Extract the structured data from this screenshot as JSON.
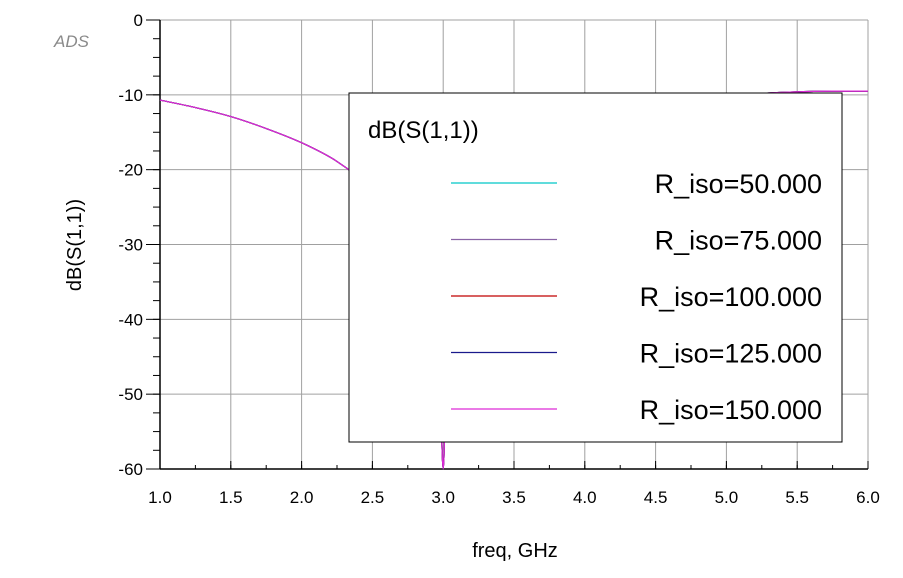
{
  "watermark": "ADS",
  "chart_data": {
    "type": "line",
    "xlabel": "freq, GHz",
    "ylabel": "dB(S(1,1))",
    "xlim": [
      1.0,
      6.0
    ],
    "ylim": [
      -60,
      0
    ],
    "x_ticks": [
      "1.0",
      "1.5",
      "2.0",
      "2.5",
      "3.0",
      "3.5",
      "4.0",
      "4.5",
      "5.0",
      "5.5",
      "6.0"
    ],
    "y_ticks": [
      "0",
      "-10",
      "-20",
      "-30",
      "-40",
      "-50",
      "-60"
    ],
    "grid": true,
    "legend": {
      "title": "dB(S(1,1))",
      "placement": "center-right"
    },
    "series": [
      {
        "name": "R_iso=50.000",
        "color": "#00c8c8",
        "x": [
          1.0,
          1.25,
          1.5,
          1.75,
          2.0,
          2.25,
          2.5,
          2.6,
          2.7,
          2.8,
          2.9,
          2.95,
          2.98,
          3.0,
          3.02,
          3.05,
          3.1,
          3.2,
          3.3,
          3.4,
          3.5,
          3.75,
          4.0,
          4.25,
          4.5,
          4.75,
          5.0,
          5.25,
          5.5,
          5.75,
          6.0
        ],
        "values": [
          -10.7,
          -11.7,
          -12.9,
          -14.5,
          -16.4,
          -18.9,
          -22.6,
          -24.6,
          -27.1,
          -30.7,
          -36.8,
          -42.6,
          -50.5,
          -60.0,
          -48.5,
          -38.2,
          -31.4,
          -25.4,
          -21.7,
          -19.1,
          -17.0,
          -14.3,
          -12.8,
          -11.7,
          -11.0,
          -10.5,
          -10.1,
          -9.8,
          -9.6,
          -9.5,
          -9.5
        ]
      },
      {
        "name": "R_iso=75.000",
        "color": "#8a64a6",
        "x": [
          1.0,
          1.25,
          1.5,
          1.75,
          2.0,
          2.25,
          2.5,
          2.6,
          2.7,
          2.8,
          2.9,
          2.95,
          2.98,
          3.0,
          3.02,
          3.05,
          3.1,
          3.2,
          3.3,
          3.4,
          3.5,
          3.75,
          4.0,
          4.25,
          4.5,
          4.75,
          5.0,
          5.25,
          5.5,
          5.75,
          6.0
        ],
        "values": [
          -10.7,
          -11.7,
          -12.9,
          -14.5,
          -16.4,
          -18.9,
          -22.6,
          -24.6,
          -27.1,
          -30.7,
          -36.8,
          -42.6,
          -50.5,
          -60.0,
          -48.5,
          -38.2,
          -31.4,
          -25.4,
          -21.7,
          -19.1,
          -17.0,
          -14.3,
          -12.8,
          -11.7,
          -11.0,
          -10.5,
          -10.1,
          -9.8,
          -9.6,
          -9.5,
          -9.5
        ]
      },
      {
        "name": "R_iso=100.000",
        "color": "#c00000",
        "x": [
          1.0,
          1.25,
          1.5,
          1.75,
          2.0,
          2.25,
          2.5,
          2.6,
          2.7,
          2.8,
          2.9,
          2.95,
          2.98,
          3.0,
          3.02,
          3.05,
          3.1,
          3.2,
          3.3,
          3.4,
          3.5,
          3.75,
          4.0,
          4.25,
          4.5,
          4.75,
          5.0,
          5.25,
          5.5,
          5.75,
          6.0
        ],
        "values": [
          -10.7,
          -11.7,
          -12.9,
          -14.5,
          -16.4,
          -18.9,
          -22.6,
          -24.6,
          -27.1,
          -30.7,
          -36.8,
          -42.6,
          -50.5,
          -60.0,
          -48.5,
          -38.2,
          -31.4,
          -25.4,
          -21.7,
          -19.1,
          -17.0,
          -14.3,
          -12.8,
          -11.7,
          -11.0,
          -10.5,
          -10.1,
          -9.8,
          -9.6,
          -9.5,
          -9.5
        ]
      },
      {
        "name": "R_iso=125.000",
        "color": "#1a1a8c",
        "x": [
          1.0,
          1.25,
          1.5,
          1.75,
          2.0,
          2.25,
          2.5,
          2.6,
          2.7,
          2.8,
          2.9,
          2.95,
          2.98,
          3.0,
          3.02,
          3.05,
          3.1,
          3.2,
          3.3,
          3.4,
          3.5,
          3.75,
          4.0,
          4.25,
          4.5,
          4.75,
          5.0,
          5.25,
          5.5,
          5.75,
          6.0
        ],
        "values": [
          -10.7,
          -11.7,
          -12.9,
          -14.5,
          -16.4,
          -18.9,
          -22.6,
          -24.6,
          -27.1,
          -30.7,
          -36.8,
          -42.6,
          -50.5,
          -60.0,
          -48.5,
          -38.2,
          -31.4,
          -25.4,
          -21.7,
          -19.1,
          -17.0,
          -14.3,
          -12.8,
          -11.7,
          -11.0,
          -10.5,
          -10.1,
          -9.8,
          -9.6,
          -9.5,
          -9.5
        ]
      },
      {
        "name": "R_iso=150.000",
        "color": "#dd2ad6",
        "x": [
          1.0,
          1.25,
          1.5,
          1.75,
          2.0,
          2.25,
          2.5,
          2.6,
          2.7,
          2.8,
          2.9,
          2.95,
          2.98,
          3.0,
          3.02,
          3.05,
          3.1,
          3.2,
          3.3,
          3.4,
          3.5,
          3.75,
          4.0,
          4.25,
          4.5,
          4.75,
          5.0,
          5.25,
          5.5,
          5.75,
          6.0
        ],
        "values": [
          -10.7,
          -11.7,
          -12.9,
          -14.5,
          -16.4,
          -18.9,
          -22.6,
          -24.6,
          -27.1,
          -30.7,
          -36.8,
          -42.6,
          -50.5,
          -60.0,
          -48.5,
          -38.2,
          -31.4,
          -25.4,
          -21.7,
          -19.1,
          -17.0,
          -14.3,
          -12.8,
          -11.7,
          -11.0,
          -10.5,
          -10.1,
          -9.8,
          -9.6,
          -9.5,
          -9.5
        ]
      }
    ]
  }
}
